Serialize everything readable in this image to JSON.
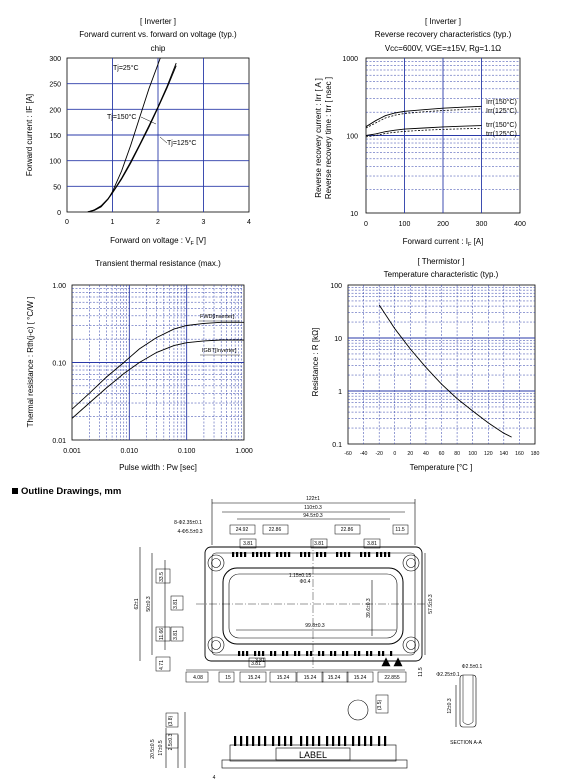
{
  "charts": [
    {
      "id": "forward",
      "header": "[ Inverter ]",
      "title": "Forward current  vs.  forward on voltage  (typ.)",
      "subtitle": "chip",
      "xlabel": "Forward on voltage : VF [V]",
      "ylabel": "Forward current : IF [A]",
      "x_ticks": [
        "0",
        "1",
        "2",
        "3",
        "4"
      ],
      "y_ticks": [
        "0",
        "50",
        "100",
        "150",
        "200",
        "250",
        "300"
      ],
      "annotations": [
        "Tj=25°C",
        "Tj=150°C",
        "Tj=125°C"
      ]
    },
    {
      "id": "recovery",
      "header": "[ Inverter ]",
      "title": "Reverse recovery characteristics  (typ.)",
      "subtitle": "Vcc=600V,  VGE=±15V,  Rg=1.1Ω",
      "xlabel": "Forward current : IF [A]",
      "ylabel_1": "Reverse recovery current :  Irr  [ A ]",
      "ylabel_2": "Reverse recovery time :  trr  [ nsec ]",
      "x_ticks": [
        "0",
        "100",
        "200",
        "300",
        "400"
      ],
      "y_ticks": [
        "10",
        "100",
        "1000"
      ],
      "annotations": [
        "Irr(150°C)",
        "Irr(125°C)",
        "trr(150°C)",
        "trr(125°C)"
      ]
    },
    {
      "id": "thermal",
      "header": "",
      "title": "Transient thermal resistance (max.)",
      "subtitle": "",
      "xlabel": "Pulse width : Pw [sec]",
      "ylabel": "Thermal resistance :  Rth(j-c)  [ °C/W ]",
      "x_ticks": [
        "0.001",
        "0.010",
        "0.100",
        "1.000"
      ],
      "y_ticks": [
        "0.01",
        "0.10",
        "1.00"
      ],
      "annotations": [
        "FWD[Inverter]",
        "IGBT[Inverter]"
      ]
    },
    {
      "id": "thermistor",
      "header": "[ Thermistor ]",
      "title": "Temperature characteristic (typ.)",
      "subtitle": "",
      "xlabel": "Temperature  [°C ]",
      "ylabel": "Resistance : R [kΩ]",
      "x_ticks": [
        "-60",
        "-40",
        "-20",
        "0",
        "20",
        "40",
        "60",
        "80",
        "100",
        "120",
        "140",
        "160",
        "180"
      ],
      "y_ticks": [
        "0.1",
        "1",
        "10",
        "100"
      ],
      "annotations": []
    }
  ],
  "chart_data": [
    {
      "type": "line",
      "xlim": [
        0,
        4
      ],
      "ylim": [
        0,
        300
      ],
      "grid": true,
      "series": [
        {
          "name": "Tj=25°C",
          "x": [
            0.45,
            0.6,
            0.75,
            0.9,
            1.0,
            1.2,
            1.4,
            1.6,
            1.8,
            2.05
          ],
          "y": [
            0,
            3,
            10,
            25,
            40,
            80,
            130,
            185,
            240,
            300
          ]
        },
        {
          "name": "Tj=150°C",
          "x": [
            0.45,
            0.6,
            0.75,
            0.9,
            1.0,
            1.2,
            1.4,
            1.6,
            1.8,
            2.0,
            2.2,
            2.4
          ],
          "y": [
            0,
            4,
            12,
            26,
            38,
            66,
            98,
            132,
            168,
            205,
            245,
            290
          ]
        },
        {
          "name": "Tj=125°C",
          "x": [
            0.45,
            0.6,
            0.75,
            0.9,
            1.0,
            1.2,
            1.4,
            1.6,
            1.8,
            2.0,
            2.2,
            2.4
          ],
          "y": [
            0,
            4,
            11,
            25,
            37,
            64,
            95,
            130,
            165,
            203,
            242,
            285
          ]
        }
      ]
    },
    {
      "type": "line",
      "xlim": [
        0,
        400
      ],
      "ylim": [
        10,
        1000
      ],
      "yscale": "log",
      "grid": true,
      "series": [
        {
          "name": "Irr(150°C)",
          "x": [
            0,
            25,
            50,
            75,
            100,
            150,
            200,
            250,
            300
          ],
          "y": [
            130,
            155,
            180,
            195,
            205,
            215,
            225,
            232,
            238
          ]
        },
        {
          "name": "Irr(125°C)",
          "x": [
            0,
            25,
            50,
            75,
            100,
            150,
            200,
            250,
            300
          ],
          "y": [
            125,
            145,
            168,
            183,
            192,
            202,
            210,
            216,
            221
          ]
        },
        {
          "name": "trr(150°C)",
          "x": [
            0,
            25,
            50,
            75,
            100,
            150,
            200,
            250,
            300
          ],
          "y": [
            100,
            105,
            112,
            117,
            121,
            125,
            129,
            132,
            134
          ]
        },
        {
          "name": "trr(125°C)",
          "x": [
            0,
            25,
            50,
            75,
            100,
            150,
            200,
            250,
            300
          ],
          "y": [
            96,
            100,
            106,
            110,
            113,
            117,
            120,
            122,
            124
          ]
        }
      ]
    },
    {
      "type": "line",
      "xlim": [
        0.001,
        1.0
      ],
      "ylim": [
        0.01,
        1.0
      ],
      "xscale": "log",
      "yscale": "log",
      "grid": true,
      "series": [
        {
          "name": "FWD[Inverter]",
          "x": [
            0.001,
            0.002,
            0.004,
            0.008,
            0.015,
            0.03,
            0.06,
            0.1,
            0.2,
            0.4,
            1.0
          ],
          "y": [
            0.025,
            0.04,
            0.065,
            0.1,
            0.15,
            0.21,
            0.27,
            0.3,
            0.32,
            0.33,
            0.33
          ]
        },
        {
          "name": "IGBT[Inverter]",
          "x": [
            0.001,
            0.002,
            0.004,
            0.008,
            0.015,
            0.03,
            0.06,
            0.1,
            0.2,
            0.4,
            1.0
          ],
          "y": [
            0.019,
            0.03,
            0.047,
            0.072,
            0.1,
            0.135,
            0.165,
            0.18,
            0.19,
            0.195,
            0.195
          ]
        }
      ]
    },
    {
      "type": "line",
      "xlim": [
        -60,
        180
      ],
      "ylim": [
        0.1,
        100
      ],
      "yscale": "log",
      "grid": true,
      "series": [
        {
          "x": [
            -20,
            0,
            20,
            40,
            60,
            80,
            100,
            120,
            140,
            150
          ],
          "y": [
            42,
            15,
            6.2,
            2.8,
            1.35,
            0.72,
            0.42,
            0.25,
            0.16,
            0.135
          ]
        }
      ]
    }
  ],
  "outline": {
    "heading": "Outline Drawings, mm",
    "label_text": "LABEL",
    "section_label": "SECTION A-A",
    "dims": [
      "122±1",
      "110±0.3",
      "94.5±0.3",
      "8-Φ2.35±0.1",
      "4-Φ5.5±0.3",
      "24.92",
      "22.86",
      "22.86",
      "11.5",
      "3.81",
      "3.81",
      "3.81",
      "Φ0.4",
      "1.15±0.15",
      "3.81",
      "33.5",
      "3.81",
      "3.81",
      "11.66",
      "62±1",
      "50±0.3",
      "39.6±0.3",
      "57.5±0.3",
      "4.71",
      "99.8±0.3",
      "4.08",
      "15",
      "15.24",
      "15.24",
      "15.24",
      "15.24",
      "15.24",
      "22.855",
      "3.81",
      "11.5",
      "(3.5)",
      "Φ2.5±0.1",
      "Φ2.25±0.1",
      "12±0.3",
      "(3.8)",
      "2.5±0.3",
      "17±0.5",
      "20.5±0.5",
      "4"
    ]
  }
}
